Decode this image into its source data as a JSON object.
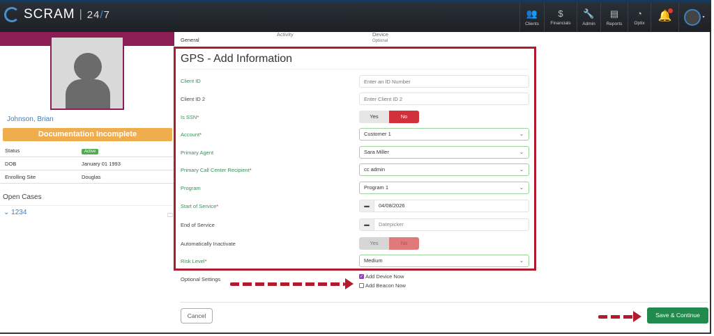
{
  "header": {
    "brand": "SCRAM",
    "product_prefix": "24",
    "product_slash": "/",
    "product_suffix": "7",
    "nav": [
      {
        "label": "Clients",
        "icon": "users-icon"
      },
      {
        "label": "Financials",
        "icon": "dollar-icon"
      },
      {
        "label": "Admin",
        "icon": "wrench-icon"
      },
      {
        "label": "Reports",
        "icon": "document-icon"
      },
      {
        "label": "Optix",
        "icon": "gauge-icon"
      }
    ],
    "notification_icon": "bell-icon",
    "avatar_icon": "user-avatar-icon"
  },
  "client": {
    "name": "Johnson, Brian",
    "banner": "Documentation Incomplete",
    "info": [
      {
        "key": "Status",
        "value": "Active"
      },
      {
        "key": "DOB",
        "value": "January 01 1993"
      },
      {
        "key": "Enrolling Site",
        "value": "Douglas"
      }
    ],
    "open_cases_label": "Open Cases",
    "case": "1234"
  },
  "tabs": {
    "general": "General",
    "activity": "Activity",
    "device": "Device",
    "device_sub": "Optional"
  },
  "form": {
    "title": "GPS - Add Information",
    "client_id": {
      "label": "Client ID",
      "placeholder": "Enter an ID Number"
    },
    "client_id2": {
      "label": "Client ID 2",
      "placeholder": "Enter Client ID 2"
    },
    "is_ssn": {
      "label": "Is SSN",
      "yes": "Yes",
      "no": "No",
      "value": "No"
    },
    "account": {
      "label": "Account",
      "value": "Customer 1"
    },
    "primary_agent": {
      "label": "Primary Agent",
      "value": "Sara Miller"
    },
    "call_center": {
      "label": "Primary Call Center Recipient",
      "value": "cc admin"
    },
    "program": {
      "label": "Program",
      "value": "Program 1"
    },
    "start": {
      "label": "Start of Service",
      "value": "04/08/2026"
    },
    "end": {
      "label": "End of Service",
      "placeholder": "Datepicker"
    },
    "auto_inactivate": {
      "label": "Automatically Inactivate",
      "yes": "Yes",
      "no": "No",
      "value": "No"
    },
    "risk": {
      "label": "Risk Level",
      "value": "Medium"
    },
    "required_mark": "*"
  },
  "optional": {
    "label": "Optional Settings",
    "add_device": "Add Device Now",
    "add_device_checked": true,
    "add_beacon": "Add Beacon Now",
    "add_beacon_checked": false
  },
  "footer": {
    "cancel": "Cancel",
    "save": "Save & Continue"
  },
  "colors": {
    "accent_red": "#b01c2e",
    "maroon": "#8b1f55",
    "save_green": "#1f8a4c",
    "banner_orange": "#f0ad4e",
    "label_green": "#3c8c5a"
  }
}
